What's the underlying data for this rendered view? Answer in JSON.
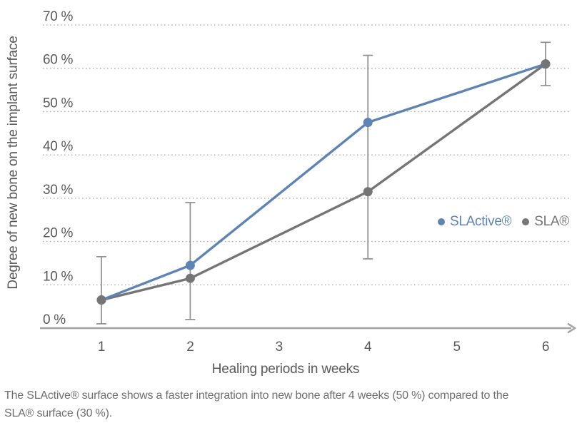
{
  "chart_data": {
    "type": "line",
    "title": "",
    "xlabel": "Healing periods in weeks",
    "ylabel": "Degree of new bone on the implant surface",
    "x_ticks": [
      "1",
      "2",
      "3",
      "4",
      "5",
      "6"
    ],
    "x_values": [
      1,
      2,
      3,
      4,
      5,
      6
    ],
    "xlim": [
      1,
      6
    ],
    "ylim": [
      0,
      70
    ],
    "yticks": [
      {
        "value": 0,
        "label": "0 %"
      },
      {
        "value": 10,
        "label": "10 %"
      },
      {
        "value": 20,
        "label": "20 %"
      },
      {
        "value": 30,
        "label": "30 %"
      },
      {
        "value": 40,
        "label": "40 %"
      },
      {
        "value": 50,
        "label": "50 %"
      },
      {
        "value": 60,
        "label": "60 %"
      },
      {
        "value": 70,
        "label": "70 %"
      }
    ],
    "grid": "horizontal-dotted",
    "legend_position": "middle-right",
    "series": [
      {
        "name": "SLActive®",
        "color": "#5e84b6",
        "x": [
          1,
          2,
          4,
          6
        ],
        "values": [
          6.5,
          14.5,
          47.5,
          61
        ]
      },
      {
        "name": "SLA®",
        "color": "#757575",
        "x": [
          1,
          2,
          4,
          6
        ],
        "values": [
          6.5,
          11.5,
          31.5,
          61
        ]
      }
    ],
    "error_bars": [
      {
        "x": 1,
        "low": 1,
        "high": 16.5
      },
      {
        "x": 2,
        "low": 2,
        "high": 29
      },
      {
        "x": 4,
        "low": 16,
        "high": 63
      },
      {
        "x": 6,
        "low": 56,
        "high": 66
      }
    ]
  },
  "caption": {
    "lines": [
      "The SLActive® surface shows a faster integration into new bone after 4 weeks (50 %) compared to the",
      "SLA® surface (30 %)."
    ]
  },
  "colors": {
    "slactive_blue": "#5e84b6",
    "sla_gray": "#757575",
    "error_bar": "#8f8f8f",
    "axis_line": "#a2a2a2",
    "gridline": "#b1b1b1",
    "tick_text": "#595959",
    "caption_text": "#6f6f6f"
  }
}
